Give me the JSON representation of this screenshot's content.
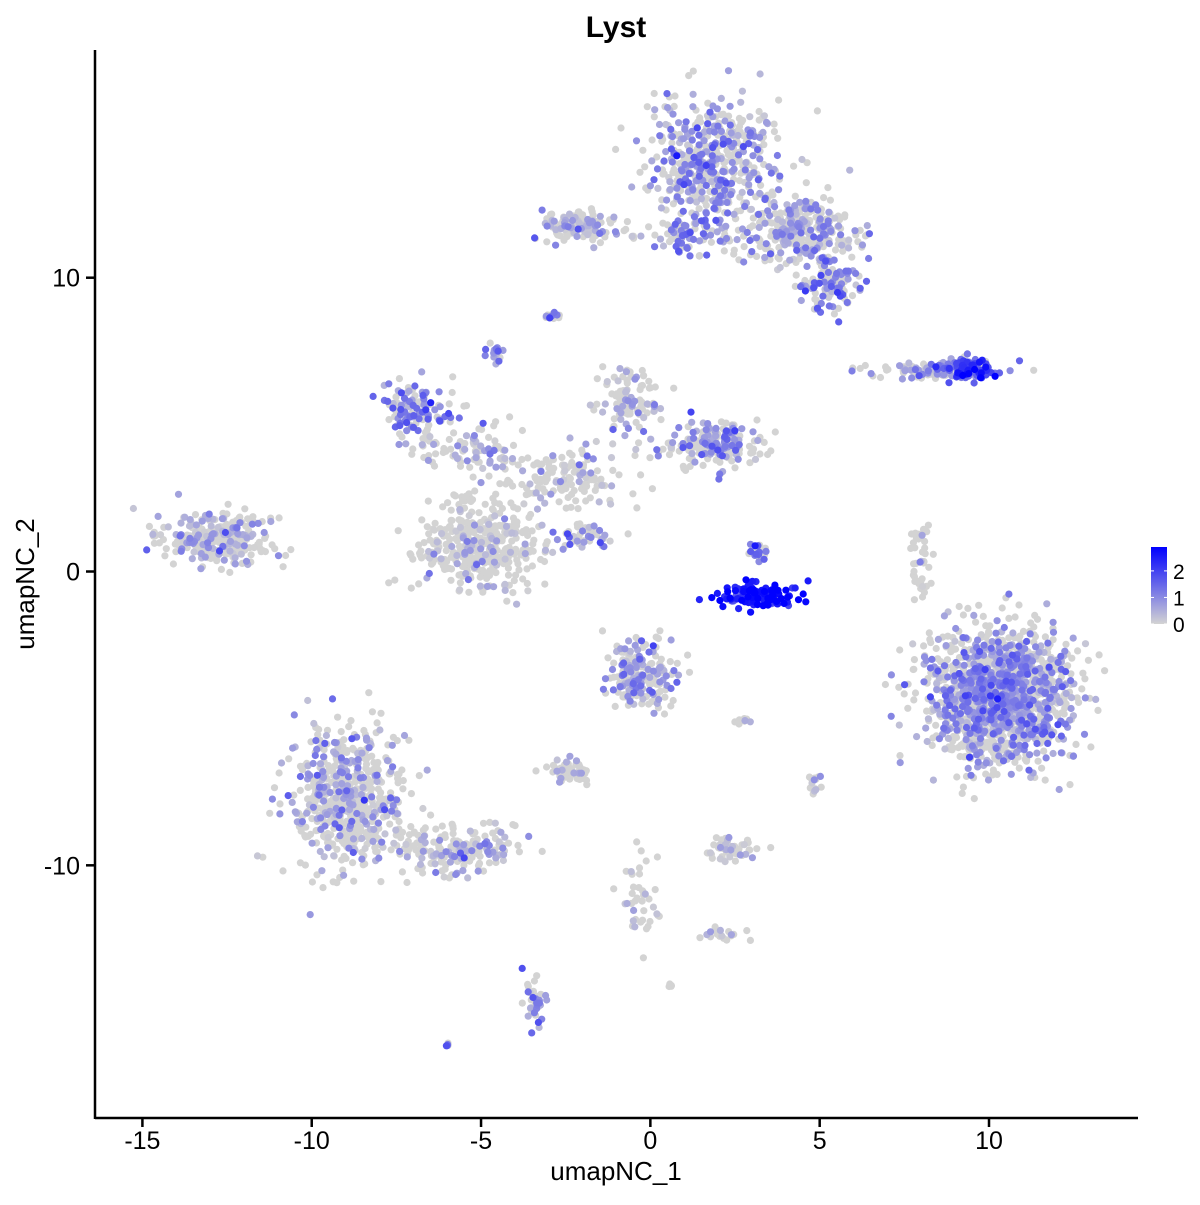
{
  "chart_data": {
    "type": "scatter",
    "title": "Lyst",
    "xlabel": "umapNC_1",
    "ylabel": "umapNC_2",
    "xlim": [
      -16.4,
      14.4
    ],
    "ylim": [
      -18.6,
      17.75
    ],
    "xticks": [
      -15,
      -10,
      -5,
      0,
      5,
      10
    ],
    "yticks": [
      -10,
      0,
      10
    ],
    "grid": false,
    "legend": {
      "position": "right",
      "type": "colorbar",
      "ticks": [
        0,
        1,
        2
      ],
      "range": [
        0,
        2.9
      ]
    },
    "colors": {
      "low": "#d3d3d3",
      "high": "#0000ff"
    },
    "clusters": [
      {
        "x": 1.9,
        "y": 14.0,
        "sx": 1.3,
        "sy": 1.4,
        "n": 500,
        "expr": 0.6
      },
      {
        "x": 4.4,
        "y": 11.6,
        "sx": 1.2,
        "sy": 0.8,
        "n": 300,
        "expr": 0.5
      },
      {
        "x": 5.3,
        "y": 9.7,
        "sx": 0.6,
        "sy": 0.5,
        "n": 120,
        "expr": 0.8
      },
      {
        "x": 1.2,
        "y": 11.4,
        "sx": 1.0,
        "sy": 0.4,
        "n": 80,
        "expr": 0.7
      },
      {
        "x": -2.1,
        "y": 11.8,
        "sx": 0.8,
        "sy": 0.35,
        "n": 120,
        "expr": 0.3
      },
      {
        "x": -2.9,
        "y": 8.7,
        "sx": 0.15,
        "sy": 0.1,
        "n": 15,
        "expr": 0.8
      },
      {
        "x": -4.6,
        "y": 7.4,
        "sx": 0.15,
        "sy": 0.2,
        "n": 20,
        "expr": 0.8
      },
      {
        "x": -6.8,
        "y": 5.5,
        "sx": 0.7,
        "sy": 0.6,
        "n": 120,
        "expr": 0.8
      },
      {
        "x": -5.3,
        "y": 4.3,
        "sx": 1.0,
        "sy": 0.5,
        "n": 80,
        "expr": 0.5
      },
      {
        "x": -5.0,
        "y": 0.9,
        "sx": 1.2,
        "sy": 1.0,
        "n": 400,
        "expr": 0.1
      },
      {
        "x": -2.7,
        "y": 3.2,
        "sx": 1.5,
        "sy": 0.7,
        "n": 150,
        "expr": 0.2
      },
      {
        "x": -0.6,
        "y": 5.7,
        "sx": 0.6,
        "sy": 0.8,
        "n": 100,
        "expr": 0.3
      },
      {
        "x": 1.8,
        "y": 4.3,
        "sx": 0.9,
        "sy": 0.5,
        "n": 200,
        "expr": 0.6
      },
      {
        "x": -12.8,
        "y": 1.1,
        "sx": 1.0,
        "sy": 0.6,
        "n": 300,
        "expr": 0.4
      },
      {
        "x": -1.8,
        "y": 1.2,
        "sx": 0.5,
        "sy": 0.3,
        "n": 40,
        "expr": 0.6
      },
      {
        "x": 3.2,
        "y": -0.8,
        "sx": 0.8,
        "sy": 0.25,
        "n": 120,
        "expr": 1.8
      },
      {
        "x": 3.2,
        "y": 0.7,
        "sx": 0.2,
        "sy": 0.3,
        "n": 20,
        "expr": 0.9
      },
      {
        "x": 10.3,
        "y": -4.2,
        "sx": 1.4,
        "sy": 1.5,
        "n": 1500,
        "expr": 0.6
      },
      {
        "x": 8.3,
        "y": 6.85,
        "sx": 1.2,
        "sy": 0.2,
        "n": 100,
        "expr": 0.7
      },
      {
        "x": 9.4,
        "y": 6.9,
        "sx": 0.45,
        "sy": 0.25,
        "n": 100,
        "expr": 1.3
      },
      {
        "x": 8.0,
        "y": 0.4,
        "sx": 0.2,
        "sy": 0.9,
        "n": 40,
        "expr": 0.1
      },
      {
        "x": -0.3,
        "y": -3.5,
        "sx": 0.6,
        "sy": 0.8,
        "n": 200,
        "expr": 0.5
      },
      {
        "x": -2.4,
        "y": -6.8,
        "sx": 0.4,
        "sy": 0.3,
        "n": 60,
        "expr": 0.2
      },
      {
        "x": -8.9,
        "y": -7.8,
        "sx": 1.1,
        "sy": 1.6,
        "n": 600,
        "expr": 0.4
      },
      {
        "x": -5.6,
        "y": -9.5,
        "sx": 1.2,
        "sy": 0.5,
        "n": 200,
        "expr": 0.3
      },
      {
        "x": 2.4,
        "y": -9.5,
        "sx": 0.4,
        "sy": 0.3,
        "n": 60,
        "expr": 0.2
      },
      {
        "x": -0.3,
        "y": -11.2,
        "sx": 0.4,
        "sy": 1.0,
        "n": 40,
        "expr": 0.1
      },
      {
        "x": 2.1,
        "y": -12.4,
        "sx": 0.5,
        "sy": 0.2,
        "n": 20,
        "expr": 0.3
      },
      {
        "x": -3.4,
        "y": -14.6,
        "sx": 0.2,
        "sy": 0.6,
        "n": 40,
        "expr": 0.7
      },
      {
        "x": 4.9,
        "y": -7.3,
        "sx": 0.15,
        "sy": 0.3,
        "n": 15,
        "expr": 0.2
      },
      {
        "x": -6.0,
        "y": -16.1,
        "sx": 0.1,
        "sy": 0.1,
        "n": 5,
        "expr": 0.8
      },
      {
        "x": 2.8,
        "y": -5.1,
        "sx": 0.2,
        "sy": 0.1,
        "n": 10,
        "expr": 0.3
      },
      {
        "x": 0.6,
        "y": -14.0,
        "sx": 0.1,
        "sy": 0.1,
        "n": 5,
        "expr": 0.1
      }
    ]
  }
}
